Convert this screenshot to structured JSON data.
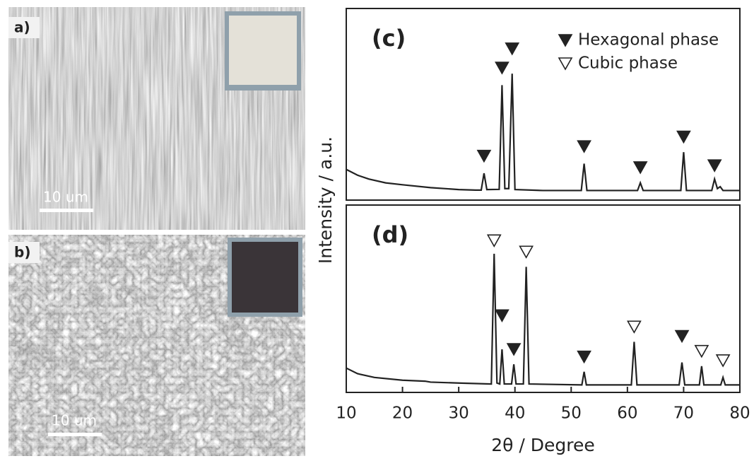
{
  "images": [
    {
      "label": "a)",
      "scale_bar": "10 um"
    },
    {
      "label": "b)",
      "scale_bar": "10 um"
    }
  ],
  "chart_data": [
    {
      "type": "line",
      "panel_label": "(c)",
      "ylabel": "Intensity / a.u.",
      "xlim": [
        10,
        80
      ],
      "ylim": [
        0,
        100
      ],
      "legend": "upper right",
      "series": [
        {
          "color": "#222222",
          "x": [
            10,
            12,
            14,
            17,
            20,
            25,
            30,
            33,
            34,
            34.5,
            35,
            37.2,
            37.7,
            38.2,
            38.9,
            39.5,
            40,
            45,
            51.8,
            52.3,
            52.8,
            61.8,
            62.3,
            62.8,
            69.5,
            70,
            70.5,
            75,
            75.5,
            76,
            76.5,
            77,
            80
          ],
          "values": [
            16,
            13,
            11,
            9,
            8,
            6.5,
            5.5,
            5.2,
            5.2,
            14,
            5.5,
            5.6,
            60,
            6,
            6,
            66,
            5.5,
            5,
            5,
            19,
            5,
            5,
            9,
            5,
            5,
            25,
            5,
            5,
            11,
            6,
            7,
            5,
            5
          ]
        },
        {
          "name": "Hexagonal phase",
          "marker": "filled",
          "color": "#222222",
          "x": [
            34.5,
            37.7,
            39.5,
            52.3,
            62.3,
            70,
            75.5
          ],
          "values": [
            23,
            69,
            79,
            28,
            17,
            33,
            18
          ]
        },
        {
          "name": "Cubic phase",
          "marker": "open",
          "color": "#222222",
          "x": [],
          "values": []
        }
      ]
    },
    {
      "type": "line",
      "panel_label": "(d)",
      "xlabel": "2θ  / Degree",
      "xlim": [
        10,
        80
      ],
      "ylim": [
        0,
        100
      ],
      "xticks": [
        10,
        20,
        30,
        40,
        50,
        60,
        70,
        80
      ],
      "series": [
        {
          "color": "#222222",
          "x": [
            10,
            12,
            15,
            20,
            24,
            25,
            30,
            35.8,
            36.3,
            36.8,
            37.3,
            37.7,
            38.1,
            39.4,
            39.8,
            40.2,
            41.5,
            42,
            42.5,
            51.9,
            52.3,
            52.7,
            60.7,
            61.2,
            61.7,
            69.2,
            69.7,
            70.2,
            72.8,
            73.2,
            73.6,
            76.6,
            77,
            77.4,
            80
          ],
          "values": [
            13,
            10,
            8,
            6.5,
            6,
            5.5,
            5,
            4.5,
            74,
            5,
            4.5,
            23,
            4.5,
            4.5,
            15,
            4.5,
            4.5,
            67,
            4.5,
            4,
            11,
            4,
            4,
            27,
            4,
            4,
            16,
            4,
            4,
            14,
            4,
            4,
            8,
            4,
            4
          ]
        },
        {
          "marker": "filled",
          "color": "#222222",
          "x": [
            37.7,
            39.8,
            52.3,
            69.7
          ],
          "values": [
            41,
            23,
            19,
            30
          ]
        },
        {
          "marker": "open",
          "color": "#222222",
          "x": [
            36.3,
            42,
            61.2,
            73.2,
            77
          ],
          "values": [
            81,
            75,
            35,
            22,
            17
          ]
        }
      ]
    }
  ]
}
